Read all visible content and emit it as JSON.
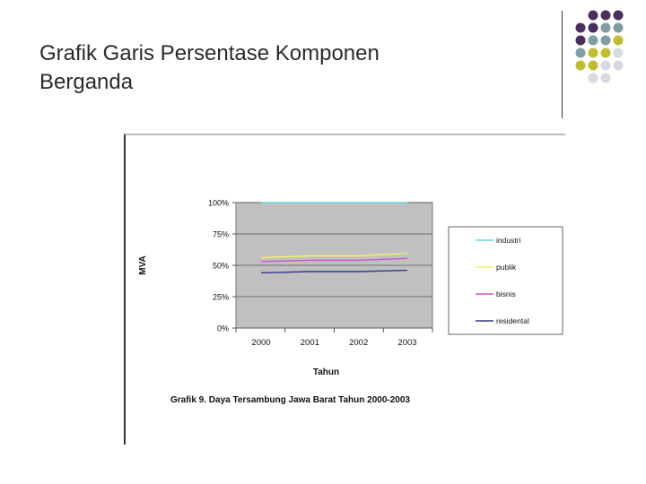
{
  "slide": {
    "title_line1": "Grafik Garis Persentase Komponen",
    "title_line2": "Berganda"
  },
  "decoration": {
    "dot_colors": [
      "#4b2d5e",
      "#7e9ea3",
      "#bfbf2e",
      "#d9d9e4"
    ]
  },
  "chart_data": {
    "type": "line",
    "categories": [
      "2000",
      "2001",
      "2002",
      "2003"
    ],
    "series": [
      {
        "name": "industri",
        "values": [
          100,
          100,
          100,
          100
        ],
        "color": "#66d9d9"
      },
      {
        "name": "publik",
        "values": [
          56,
          57.5,
          57.5,
          59.5
        ],
        "color": "#f2f26e"
      },
      {
        "name": "bisnis",
        "values": [
          53,
          54,
          54,
          55.5
        ],
        "color": "#cc55cc"
      },
      {
        "name": "residental",
        "values": [
          44,
          45,
          45,
          46
        ],
        "color": "#333a8c"
      }
    ],
    "yticks": [
      "0%",
      "25%",
      "50%",
      "75%",
      "100%"
    ],
    "ylim": [
      0,
      100
    ],
    "xlabel": "Tahun",
    "ylabel": "MVA",
    "caption": "Grafik 9. Daya Tersambung Jawa Barat Tahun 2000-2003",
    "grid": true,
    "legend_position": "right",
    "plot_background": "#c0c0c0"
  }
}
